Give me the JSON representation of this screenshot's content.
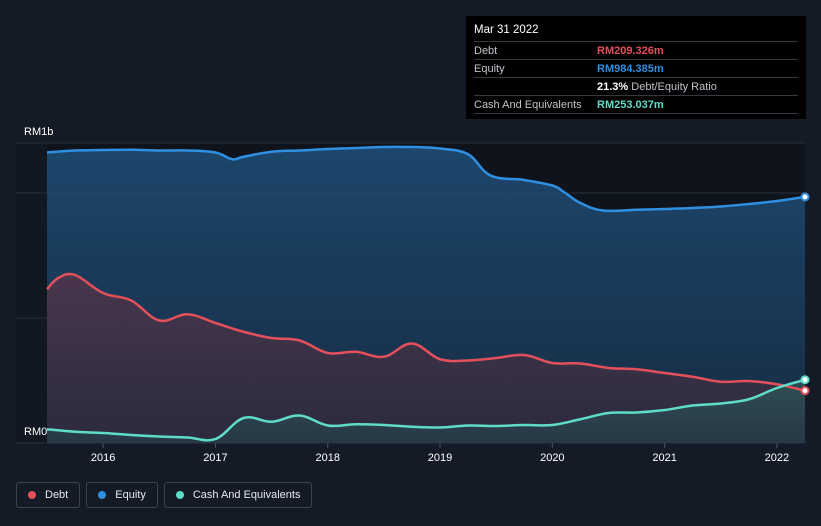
{
  "chart_data": {
    "type": "area",
    "ylabel_top": "RM1b",
    "ylabel_bottom": "RM0",
    "ylim": [
      0,
      1200
    ],
    "xlim": [
      2015.5,
      2022.25
    ],
    "x_ticks": [
      "2016",
      "2017",
      "2018",
      "2019",
      "2020",
      "2021",
      "2022"
    ],
    "x_tick_values": [
      2016,
      2017,
      2018,
      2019,
      2020,
      2021,
      2022
    ],
    "grid": true,
    "legend_position": "bottom-left",
    "series": [
      {
        "name": "Equity",
        "color": "#2f8fe0",
        "x": [
          2015.5,
          2015.75,
          2016.0,
          2016.25,
          2016.5,
          2016.75,
          2017.0,
          2017.15,
          2017.25,
          2017.5,
          2017.75,
          2018.0,
          2018.25,
          2018.5,
          2018.75,
          2019.0,
          2019.25,
          2019.45,
          2019.75,
          2020.0,
          2020.1,
          2020.25,
          2020.45,
          2020.75,
          2021.0,
          2021.25,
          2021.5,
          2021.75,
          2022.0,
          2022.25
        ],
        "y": [
          1162,
          1170,
          1172,
          1173,
          1170,
          1170,
          1162,
          1135,
          1145,
          1165,
          1170,
          1176,
          1180,
          1184,
          1184,
          1178,
          1155,
          1070,
          1052,
          1030,
          1005,
          960,
          930,
          933,
          936,
          940,
          946,
          956,
          968,
          984.385
        ]
      },
      {
        "name": "Debt",
        "color": "#e3505b",
        "x": [
          2015.5,
          2015.6,
          2015.75,
          2016.0,
          2016.25,
          2016.5,
          2016.75,
          2017.0,
          2017.25,
          2017.5,
          2017.75,
          2018.0,
          2018.25,
          2018.5,
          2018.75,
          2019.0,
          2019.25,
          2019.5,
          2019.75,
          2020.0,
          2020.25,
          2020.5,
          2020.75,
          2021.0,
          2021.25,
          2021.5,
          2021.75,
          2022.0,
          2022.25
        ],
        "y": [
          615,
          660,
          672,
          600,
          570,
          490,
          515,
          480,
          445,
          420,
          410,
          360,
          365,
          345,
          398,
          335,
          330,
          340,
          352,
          320,
          318,
          300,
          295,
          280,
          265,
          245,
          248,
          235,
          209.326
        ]
      },
      {
        "name": "Cash And Equivalents",
        "color": "#5fdcc8",
        "x": [
          2015.5,
          2015.75,
          2016.0,
          2016.25,
          2016.5,
          2016.75,
          2017.0,
          2017.25,
          2017.5,
          2017.75,
          2018.0,
          2018.25,
          2018.5,
          2018.75,
          2019.0,
          2019.25,
          2019.5,
          2019.75,
          2020.0,
          2020.25,
          2020.5,
          2020.75,
          2021.0,
          2021.25,
          2021.5,
          2021.75,
          2022.0,
          2022.25
        ],
        "y": [
          55,
          45,
          40,
          32,
          26,
          22,
          16,
          100,
          85,
          110,
          70,
          75,
          72,
          65,
          62,
          70,
          68,
          72,
          72,
          95,
          120,
          122,
          132,
          150,
          158,
          175,
          220,
          253.037
        ]
      }
    ]
  },
  "tooltip": {
    "date": "Mar 31 2022",
    "rows": [
      {
        "label": "Debt",
        "value": "RM209.326m",
        "color": "#e3505b"
      },
      {
        "label": "Equity",
        "value": "RM984.385m",
        "color": "#2f8fe0"
      },
      {
        "label": "",
        "value": "21.3%",
        "sub": "Debt/Equity Ratio",
        "color": "#ffffff"
      },
      {
        "label": "Cash And Equivalents",
        "value": "RM253.037m",
        "color": "#5fdcc8"
      }
    ]
  },
  "legend": [
    {
      "label": "Debt",
      "color": "#e3505b"
    },
    {
      "label": "Equity",
      "color": "#2f8fe0"
    },
    {
      "label": "Cash And Equivalents",
      "color": "#5fdcc8"
    }
  ]
}
